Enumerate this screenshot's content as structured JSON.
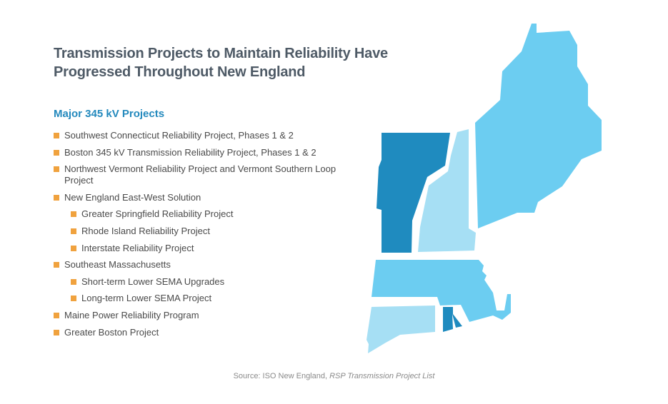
{
  "title_line1": "Transmission Projects to Maintain Reliability Have",
  "title_line2": "Progressed Throughout New England",
  "subtitle": "Major 345 kV Projects",
  "projects": [
    {
      "label": "Southwest Connecticut Reliability Project, Phases 1 & 2",
      "level": 0
    },
    {
      "label": "Boston 345 kV Transmission Reliability Project, Phases 1 & 2",
      "level": 0
    },
    {
      "label": "Northwest Vermont Reliability Project and Vermont Southern Loop Project",
      "level": 0
    },
    {
      "label": "New England East-West Solution",
      "level": 0
    },
    {
      "label": "Greater Springfield Reliability Project",
      "level": 1
    },
    {
      "label": "Rhode Island Reliability Project",
      "level": 1
    },
    {
      "label": "Interstate Reliability Project",
      "level": 1
    },
    {
      "label": "Southeast Massachusetts",
      "level": 0
    },
    {
      "label": "Short-term Lower SEMA Upgrades",
      "level": 1
    },
    {
      "label": "Long-term Lower SEMA Project",
      "level": 1
    },
    {
      "label": "Maine Power Reliability Program",
      "level": 0
    },
    {
      "label": "Greater Boston Project",
      "level": 0
    }
  ],
  "source": {
    "prefix": "Source: ISO New England, ",
    "italic": "RSP Transmission Project List"
  },
  "colors": {
    "title": "#4e5a66",
    "subtitle": "#2389bd",
    "bullet": "#f0a23e",
    "dark_blue": "#1f8bbf",
    "medium_blue": "#6ccdf1",
    "light_blue": "#a6dff4"
  }
}
